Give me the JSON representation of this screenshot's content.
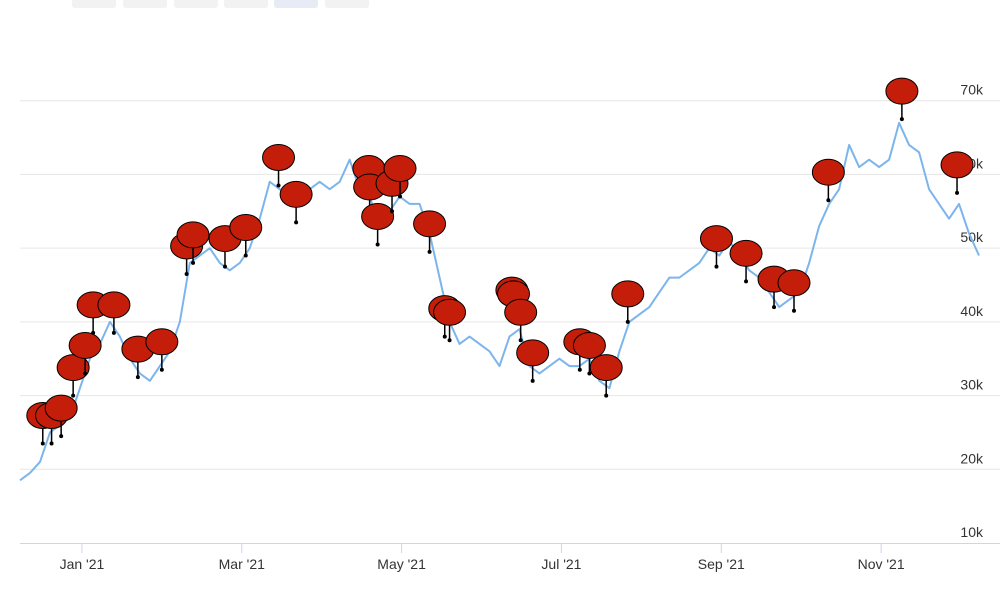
{
  "chart_data": {
    "type": "line",
    "x": [
      -0.775,
      -0.65,
      -0.525,
      -0.4,
      -0.275,
      -0.15,
      -0.025,
      0.1,
      0.225,
      0.35,
      0.475,
      0.6,
      0.725,
      0.85,
      0.975,
      1.1,
      1.225,
      1.35,
      1.475,
      1.6,
      1.725,
      1.85,
      1.975,
      2.1,
      2.225,
      2.35,
      2.475,
      2.6,
      2.725,
      2.85,
      2.975,
      3.1,
      3.225,
      3.35,
      3.475,
      3.6,
      3.725,
      3.85,
      3.975,
      4.1,
      4.225,
      4.35,
      4.475,
      4.6,
      4.725,
      4.85,
      4.975,
      5.1,
      5.225,
      5.35,
      5.475,
      5.6,
      5.725,
      5.85,
      5.975,
      6.1,
      6.225,
      6.35,
      6.475,
      6.6,
      6.725,
      6.85,
      6.975,
      7.1,
      7.225,
      7.35,
      7.475,
      7.6,
      7.725,
      7.85,
      7.975,
      8.1,
      8.225,
      8.35,
      8.475,
      8.6,
      8.725,
      8.85,
      8.975,
      9.1,
      9.225,
      9.35,
      9.475,
      9.6,
      9.725,
      9.85,
      9.975,
      10.1,
      10.225,
      10.35,
      10.475,
      10.6,
      10.725,
      10.85,
      10.975,
      11.1,
      11.225
    ],
    "values": [
      18500,
      19500,
      21000,
      25000,
      26000,
      27000,
      31000,
      35000,
      37000,
      40000,
      38000,
      35000,
      33000,
      32000,
      34000,
      36000,
      40000,
      48000,
      49000,
      50000,
      48000,
      47000,
      48000,
      50000,
      54000,
      59000,
      58000,
      57000,
      57000,
      58000,
      59000,
      58000,
      59000,
      62000,
      58000,
      57000,
      53000,
      55000,
      57000,
      56000,
      56000,
      52000,
      46000,
      40000,
      37000,
      38000,
      37000,
      36000,
      34000,
      38000,
      39000,
      34000,
      33000,
      34000,
      35000,
      34000,
      34000,
      35000,
      32000,
      31000,
      36000,
      40000,
      41000,
      42000,
      44000,
      46000,
      46000,
      47000,
      48000,
      50000,
      49000,
      51000,
      49000,
      47000,
      46000,
      44000,
      42000,
      43000,
      44000,
      48000,
      53000,
      56000,
      58000,
      64000,
      61000,
      62000,
      61000,
      62000,
      67000,
      64000,
      63000,
      58000,
      56000,
      54000,
      56000,
      52000,
      49000
    ],
    "color": "#7cb5ec",
    "flags": {
      "color": "#c41e0a",
      "x": [
        -0.49,
        -0.38,
        -0.26,
        -0.11,
        0.04,
        0.14,
        0.4,
        0.7,
        1.0,
        1.31,
        1.39,
        1.79,
        2.05,
        2.46,
        2.68,
        3.59,
        3.6,
        3.7,
        3.88,
        3.98,
        4.35,
        4.54,
        4.6,
        5.38,
        5.4,
        5.49,
        5.64,
        6.23,
        6.35,
        6.56,
        6.83,
        7.94,
        8.31,
        8.66,
        8.91,
        9.34,
        10.26,
        10.95
      ],
      "values": [
        23500,
        23500,
        24500,
        30000,
        33000,
        38500,
        38500,
        32500,
        33500,
        46500,
        48000,
        47500,
        49000,
        58500,
        53500,
        57000,
        54500,
        50500,
        55000,
        57000,
        49500,
        38000,
        37500,
        40500,
        40000,
        37500,
        32000,
        33500,
        33000,
        30000,
        40000,
        47500,
        45500,
        42000,
        41500,
        56500,
        67500,
        57500
      ]
    },
    "xlim": [
      -0.775,
      11.3
    ],
    "xticks": [
      {
        "value": 0,
        "label": "Jan '21"
      },
      {
        "value": 2,
        "label": "Mar '21"
      },
      {
        "value": 4,
        "label": "May '21"
      },
      {
        "value": 6,
        "label": "Jul '21"
      },
      {
        "value": 8,
        "label": "Sep '21"
      },
      {
        "value": 10,
        "label": "Nov '21"
      }
    ],
    "ylim": [
      10000,
      80000
    ],
    "yticks": [
      {
        "value": 10000,
        "label": "10k"
      },
      {
        "value": 20000,
        "label": "20k"
      },
      {
        "value": 30000,
        "label": "30k"
      },
      {
        "value": 40000,
        "label": "40k"
      },
      {
        "value": 50000,
        "label": "50k"
      },
      {
        "value": 60000,
        "label": "60k"
      },
      {
        "value": 70000,
        "label": "70k"
      }
    ],
    "grid": true
  }
}
